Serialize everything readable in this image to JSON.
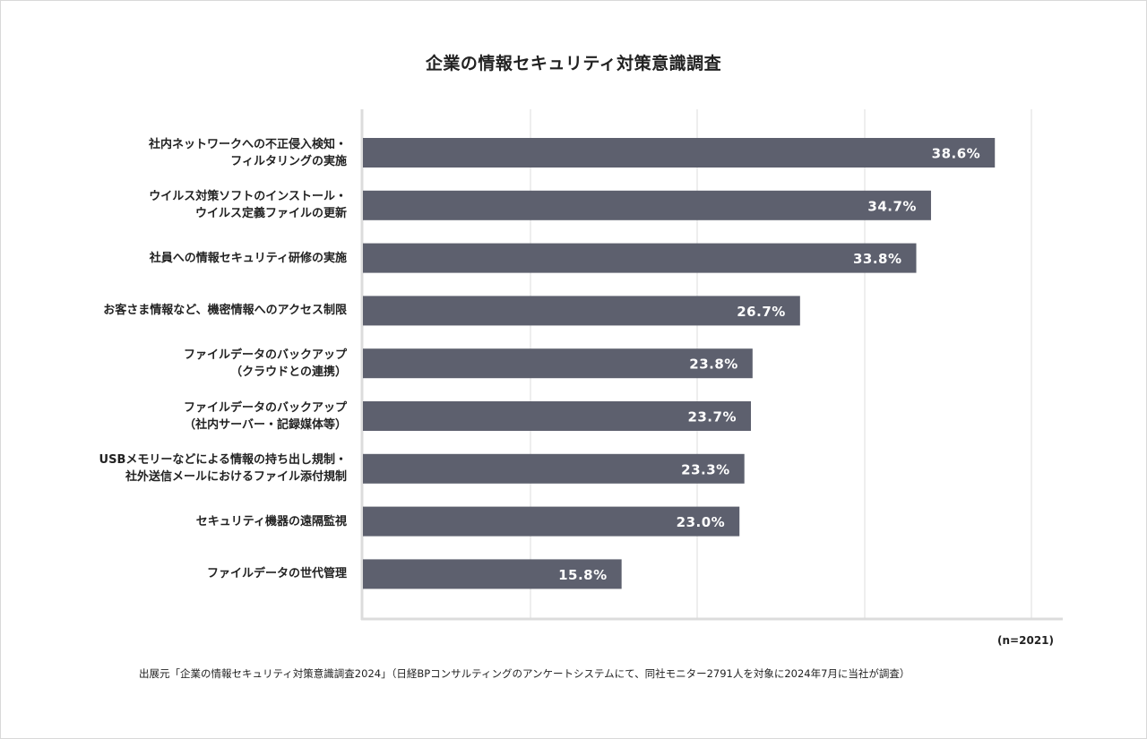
{
  "chart_data": {
    "type": "bar",
    "orientation": "horizontal",
    "title": "企業の情報セキュリティ対策意識調査",
    "categories": [
      [
        "社内ネットワークへの不正侵入検知・",
        "フィルタリングの実施"
      ],
      [
        "ウイルス対策ソフトのインストール・",
        "ウイルス定義ファイルの更新"
      ],
      [
        "社員への情報セキュリティ研修の実施"
      ],
      [
        "お客さま情報など、機密情報へのアクセス制限"
      ],
      [
        "ファイルデータのバックアップ",
        "（クラウドとの連携）"
      ],
      [
        "ファイルデータのバックアップ",
        "（社内サーバー・記録媒体等）"
      ],
      [
        "USBメモリーなどによる情報の持ち出し規制・",
        "社外送信メールにおけるファイル添付規制"
      ],
      [
        "セキュリティ機器の遠隔監視"
      ],
      [
        "ファイルデータの世代管理"
      ]
    ],
    "values": [
      38.6,
      34.7,
      33.8,
      26.7,
      23.8,
      23.7,
      23.3,
      23.0,
      15.8
    ],
    "value_labels": [
      "38.6%",
      "34.7%",
      "33.8%",
      "26.7%",
      "23.8%",
      "23.7%",
      "23.3%",
      "23.0%",
      "15.8%"
    ],
    "unit": "%",
    "grid": true,
    "xlabel": "",
    "ylabel": "",
    "bar_color": "#5d606e",
    "label_color": "#ffffff",
    "grid_color": "#e2e2e2",
    "sample_note": "(n=2021)",
    "source": "出展元「企業の情報セキュリティ対策意識調査2024」（日経BPコンサルティングのアンケートシステムにて、同社モニター2791人を対象に2024年7月に当社が調査）"
  }
}
